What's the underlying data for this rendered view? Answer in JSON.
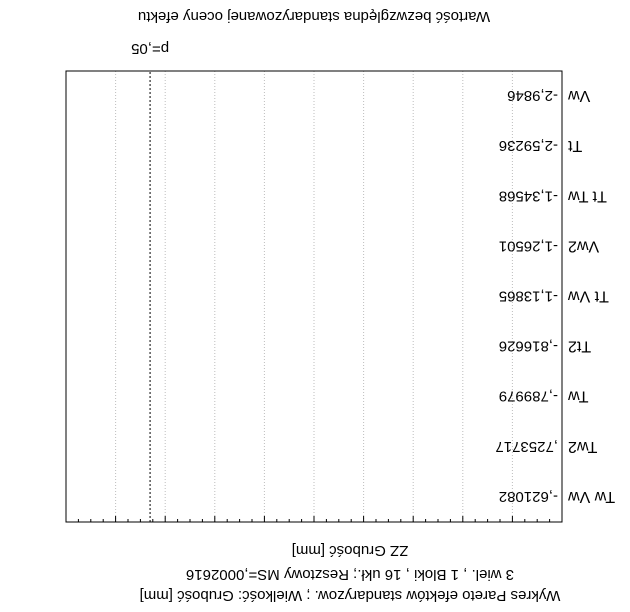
{
  "colors": {
    "background": "#ffffff",
    "bar": "#000000",
    "text": "#000000",
    "reference_line": "#000000"
  },
  "chart_data": {
    "type": "bar",
    "orientation": "horizontal",
    "rendered_rotated_180": true,
    "title": "Wykres Pareto efektów standaryzow. ; Wielkość: Grubość [mm]",
    "subtitle": "3 wiel. , 1 Bloki , 16 ukł.; Resztowy MS=,0002616",
    "ylabel": "ZZ Grubość [mm]",
    "xlabel": "Wartość bezwzględna standaryzowanej oceny efektu",
    "reference_line": {
      "label": "p=,05",
      "value": 2.45
    },
    "xlim": [
      0,
      2.95
    ],
    "grid": true,
    "categories": [
      "Vw",
      "Tt",
      "Tt Tw",
      "Vw2",
      "Tt Vw",
      "Tt2",
      "Tw",
      "Tw2",
      "Tw Vw"
    ],
    "values": [
      2.9846,
      2.59236,
      1.34568,
      1.26501,
      1.13865,
      0.816626,
      0.789979,
      0.7253717,
      0.621082
    ],
    "value_labels": [
      "-2,9846",
      "-2,59236",
      "-1,34568",
      "-1,26501",
      "-1,13865",
      "-,816626",
      "-,789979",
      ",7253717",
      "-,621082"
    ]
  }
}
